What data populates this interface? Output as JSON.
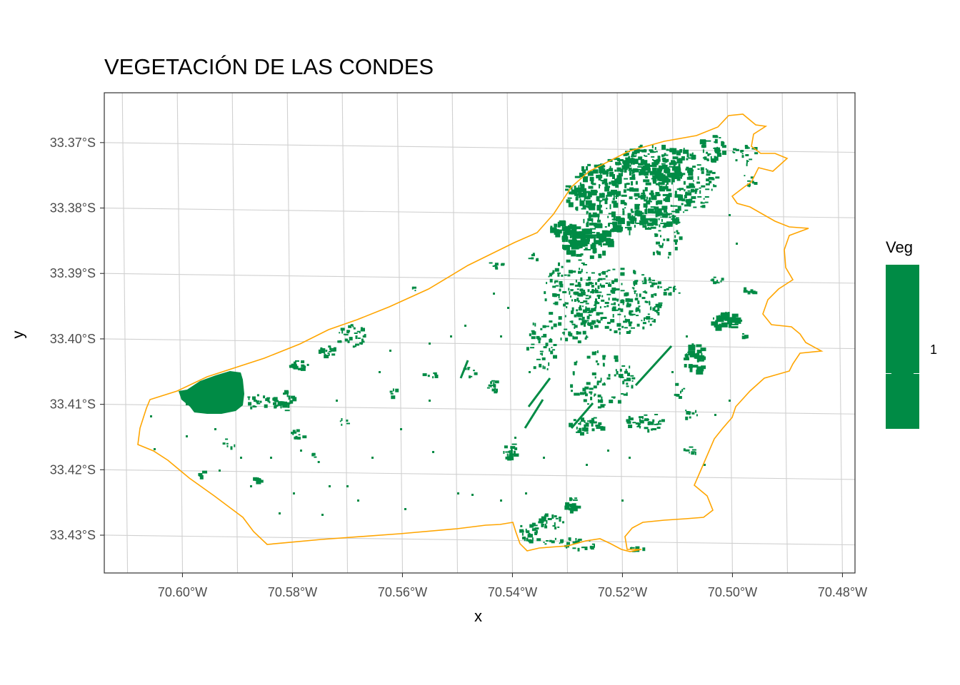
{
  "title": "VEGETACIÓN DE LAS CONDES",
  "x_axis": {
    "label": "x",
    "ticks": [
      {
        "label": "70.60°W",
        "value": -70.6
      },
      {
        "label": "70.58°W",
        "value": -70.58
      },
      {
        "label": "70.56°W",
        "value": -70.56
      },
      {
        "label": "70.54°W",
        "value": -70.54
      },
      {
        "label": "70.52°W",
        "value": -70.52
      },
      {
        "label": "70.50°W",
        "value": -70.5
      },
      {
        "label": "70.48°W",
        "value": -70.48
      }
    ]
  },
  "y_axis": {
    "label": "y",
    "ticks": [
      {
        "label": "33.37°S",
        "value": -33.37
      },
      {
        "label": "33.38°S",
        "value": -33.38
      },
      {
        "label": "33.39°S",
        "value": -33.39
      },
      {
        "label": "33.40°S",
        "value": -33.4
      },
      {
        "label": "33.41°S",
        "value": -33.41
      },
      {
        "label": "33.42°S",
        "value": -33.42
      },
      {
        "label": "33.43°S",
        "value": -33.43
      }
    ]
  },
  "legend": {
    "title": "Veg",
    "entries": [
      {
        "label": "1",
        "color": "#008B45"
      }
    ]
  },
  "colors": {
    "vegetation": "#008B45",
    "boundary": "#FFA500",
    "grid": "#d0d0d0",
    "panel_border": "#333333"
  },
  "map": {
    "boundary_name": "Las Condes",
    "raster_value": 1,
    "grid": true
  }
}
